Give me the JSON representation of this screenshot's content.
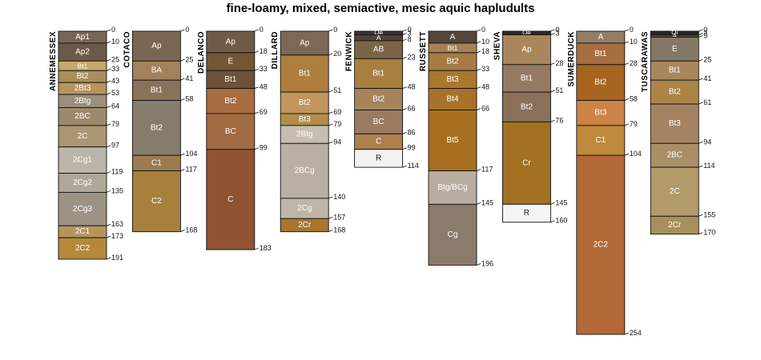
{
  "chart_data": {
    "type": "soil-profile",
    "title": "fine-loamy, mixed, semiactive, mesic aquic hapludults",
    "depth_units": "cm",
    "depth_range": [
      0,
      254
    ],
    "profiles": [
      {
        "name": "ANNEMESSEX",
        "horizons": [
          {
            "name": "Ap1",
            "top": 0,
            "bottom": 10,
            "color": "#776655"
          },
          {
            "name": "Ap2",
            "top": 10,
            "bottom": 25,
            "color": "#6b5a48"
          },
          {
            "name": "Bt1",
            "top": 25,
            "bottom": 33,
            "color": "#c6a96c"
          },
          {
            "name": "Bt2",
            "top": 33,
            "bottom": 43,
            "color": "#ab8e5a"
          },
          {
            "name": "2Bt3",
            "top": 43,
            "bottom": 53,
            "color": "#b4955e"
          },
          {
            "name": "2Btg",
            "top": 53,
            "bottom": 64,
            "color": "#9b8e7c"
          },
          {
            "name": "2BC",
            "top": 64,
            "bottom": 79,
            "color": "#9d8a6e"
          },
          {
            "name": "2C",
            "top": 79,
            "bottom": 97,
            "color": "#ab9674"
          },
          {
            "name": "2Cg1",
            "top": 97,
            "bottom": 119,
            "color": "#bbb5aa"
          },
          {
            "name": "2Cg2",
            "top": 119,
            "bottom": 135,
            "color": "#aea79a"
          },
          {
            "name": "2Cg3",
            "top": 135,
            "bottom": 163,
            "color": "#9c9384"
          },
          {
            "name": "2C1",
            "top": 163,
            "bottom": 173,
            "color": "#b5955e"
          },
          {
            "name": "2C2",
            "top": 173,
            "bottom": 191,
            "color": "#b5883c"
          }
        ]
      },
      {
        "name": "COTACO",
        "horizons": [
          {
            "name": "Ap",
            "top": 0,
            "bottom": 25,
            "color": "#7b6654"
          },
          {
            "name": "BA",
            "top": 25,
            "bottom": 41,
            "color": "#a2825c"
          },
          {
            "name": "Bt1",
            "top": 41,
            "bottom": 58,
            "color": "#8a7258"
          },
          {
            "name": "Bt2",
            "top": 58,
            "bottom": 104,
            "color": "#867c6c"
          },
          {
            "name": "C1",
            "top": 104,
            "bottom": 117,
            "color": "#9c7c4e"
          },
          {
            "name": "C2",
            "top": 117,
            "bottom": 168,
            "color": "#a7803c"
          }
        ]
      },
      {
        "name": "DELANCO",
        "horizons": [
          {
            "name": "Ap",
            "top": 0,
            "bottom": 18,
            "color": "#705b49"
          },
          {
            "name": "E",
            "top": 18,
            "bottom": 33,
            "color": "#735735"
          },
          {
            "name": "Bt1",
            "top": 33,
            "bottom": 48,
            "color": "#6d5238"
          },
          {
            "name": "Bt2",
            "top": 48,
            "bottom": 69,
            "color": "#a76c40"
          },
          {
            "name": "BC",
            "top": 69,
            "bottom": 99,
            "color": "#a36b42"
          },
          {
            "name": "C",
            "top": 99,
            "bottom": 183,
            "color": "#8f5332"
          }
        ]
      },
      {
        "name": "DILLARD",
        "horizons": [
          {
            "name": "Ap",
            "top": 0,
            "bottom": 20,
            "color": "#7b6955"
          },
          {
            "name": "Bt1",
            "top": 20,
            "bottom": 51,
            "color": "#ad7e3e"
          },
          {
            "name": "Bt2",
            "top": 51,
            "bottom": 69,
            "color": "#c2945e"
          },
          {
            "name": "Bt3",
            "top": 69,
            "bottom": 79,
            "color": "#b08f4c"
          },
          {
            "name": "2Btg",
            "top": 79,
            "bottom": 94,
            "color": "#c7beb0"
          },
          {
            "name": "2BCg",
            "top": 94,
            "bottom": 140,
            "color": "#b9b0a3"
          },
          {
            "name": "2Cg",
            "top": 140,
            "bottom": 157,
            "color": "#beb6a8"
          },
          {
            "name": "2Cr",
            "top": 157,
            "bottom": 168,
            "color": "#a97530"
          }
        ]
      },
      {
        "name": "FENWICK",
        "horizons": [
          {
            "name": "Oe",
            "top": 0,
            "bottom": 3,
            "color": "#3c342c"
          },
          {
            "name": "A",
            "top": 3,
            "bottom": 8,
            "color": "#4d4339"
          },
          {
            "name": "AB",
            "top": 8,
            "bottom": 23,
            "color": "#7b6446"
          },
          {
            "name": "Bt1",
            "top": 23,
            "bottom": 48,
            "color": "#a97f40"
          },
          {
            "name": "Bt2",
            "top": 48,
            "bottom": 66,
            "color": "#a5845c"
          },
          {
            "name": "BC",
            "top": 66,
            "bottom": 86,
            "color": "#9a7b60"
          },
          {
            "name": "C",
            "top": 86,
            "bottom": 99,
            "color": "#ad7e4e"
          },
          {
            "name": "R",
            "top": 99,
            "bottom": 114,
            "color": "#f2f2f2"
          }
        ]
      },
      {
        "name": "RUSSETT",
        "horizons": [
          {
            "name": "A",
            "top": 0,
            "bottom": 10,
            "color": "#534638"
          },
          {
            "name": "Bt1",
            "top": 10,
            "bottom": 18,
            "color": "#a78056"
          },
          {
            "name": "Bt2",
            "top": 18,
            "bottom": 33,
            "color": "#a67a43"
          },
          {
            "name": "Bt3",
            "top": 33,
            "bottom": 48,
            "color": "#a9772e"
          },
          {
            "name": "Bt4",
            "top": 48,
            "bottom": 66,
            "color": "#a8722a"
          },
          {
            "name": "Bt5",
            "top": 66,
            "bottom": 117,
            "color": "#a76e1f"
          },
          {
            "name": "Btg/BCg",
            "top": 117,
            "bottom": 145,
            "color": "#b7ada1"
          },
          {
            "name": "Cg",
            "top": 145,
            "bottom": 196,
            "color": "#8a7b6a"
          }
        ]
      },
      {
        "name": "SHEVA",
        "horizons": [
          {
            "name": "Oe",
            "top": 0,
            "bottom": 3,
            "color": "#2f2a25"
          },
          {
            "name": "Ap",
            "top": 3,
            "bottom": 28,
            "color": "#a9865c"
          },
          {
            "name": "Bt1",
            "top": 28,
            "bottom": 51,
            "color": "#957a62"
          },
          {
            "name": "Bt2",
            "top": 51,
            "bottom": 76,
            "color": "#8a7058"
          },
          {
            "name": "Cr",
            "top": 76,
            "bottom": 145,
            "color": "#a27121"
          },
          {
            "name": "R",
            "top": 145,
            "bottom": 160,
            "color": "#f4f4f4"
          }
        ]
      },
      {
        "name": "SUMERDUCK",
        "horizons": [
          {
            "name": "A",
            "top": 0,
            "bottom": 10,
            "color": "#947d66"
          },
          {
            "name": "Bt1",
            "top": 10,
            "bottom": 28,
            "color": "#a76e3f"
          },
          {
            "name": "Bt2",
            "top": 28,
            "bottom": 58,
            "color": "#a76420"
          },
          {
            "name": "Bt3",
            "top": 58,
            "bottom": 79,
            "color": "#cc8345"
          },
          {
            "name": "C1",
            "top": 79,
            "bottom": 104,
            "color": "#bf8a3b"
          },
          {
            "name": "2C2",
            "top": 104,
            "bottom": 254,
            "color": "#b36935"
          }
        ]
      },
      {
        "name": "TUSCARAWAS",
        "horizons": [
          {
            "name": "Oi",
            "top": 0,
            "bottom": 3,
            "color": "#2a2622"
          },
          {
            "name": "A",
            "top": 3,
            "bottom": 5,
            "color": "#4d4339"
          },
          {
            "name": "E",
            "top": 5,
            "bottom": 25,
            "color": "#847866"
          },
          {
            "name": "Bt1",
            "top": 25,
            "bottom": 41,
            "color": "#a8875e"
          },
          {
            "name": "Bt2",
            "top": 41,
            "bottom": 61,
            "color": "#ab8447"
          },
          {
            "name": "Bt3",
            "top": 61,
            "bottom": 94,
            "color": "#a48460"
          },
          {
            "name": "2BC",
            "top": 94,
            "bottom": 114,
            "color": "#a98e68"
          },
          {
            "name": "2C",
            "top": 114,
            "bottom": 155,
            "color": "#b29a69"
          },
          {
            "name": "2Cr",
            "top": 155,
            "bottom": 170,
            "color": "#a8905c"
          }
        ]
      }
    ]
  }
}
